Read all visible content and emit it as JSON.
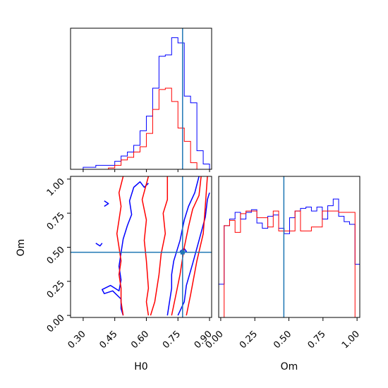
{
  "chart_data": {
    "type": "corner",
    "parameters": [
      {
        "name": "H0",
        "label": "H0",
        "range": [
          0.24,
          0.91
        ],
        "ticks": [
          "0.30",
          "0.45",
          "0.60",
          "0.75",
          "0.90"
        ],
        "tick_values": [
          0.3,
          0.45,
          0.6,
          0.75,
          0.9
        ],
        "truth": 0.772
      },
      {
        "name": "Om",
        "label": "Om",
        "range": [
          -0.015,
          1.02
        ],
        "ticks": [
          "0.00",
          "0.25",
          "0.50",
          "0.75",
          "1.00"
        ],
        "tick_values": [
          0.0,
          0.25,
          0.5,
          0.75,
          1.0
        ],
        "truth": 0.463
      }
    ],
    "truth_color": "#1f77b4",
    "series": [
      {
        "color": "#0000ff",
        "hist_H0": {
          "edges": [
            0.24,
            0.27,
            0.3,
            0.33,
            0.36,
            0.39,
            0.42,
            0.45,
            0.48,
            0.51,
            0.54,
            0.57,
            0.6,
            0.63,
            0.66,
            0.69,
            0.72,
            0.75,
            0.78,
            0.81,
            0.84,
            0.87,
            0.9,
            0.91
          ],
          "heights": [
            0.0,
            0.0,
            0.015,
            0.015,
            0.03,
            0.03,
            0.03,
            0.06,
            0.1,
            0.13,
            0.18,
            0.29,
            0.4,
            0.61,
            0.85,
            0.86,
            0.99,
            0.95,
            0.55,
            0.5,
            0.14,
            0.04,
            0.0
          ]
        },
        "hist_Om": {
          "edges": [
            -0.015,
            0.025,
            0.065,
            0.105,
            0.145,
            0.185,
            0.225,
            0.265,
            0.305,
            0.345,
            0.385,
            0.425,
            0.465,
            0.505,
            0.545,
            0.585,
            0.625,
            0.665,
            0.705,
            0.745,
            0.785,
            0.825,
            0.865,
            0.905,
            0.945,
            0.985,
            1.02
          ],
          "heights": [
            0.25,
            0.69,
            0.74,
            0.79,
            0.74,
            0.79,
            0.81,
            0.71,
            0.67,
            0.76,
            0.77,
            0.67,
            0.63,
            0.75,
            0.8,
            0.82,
            0.83,
            0.8,
            0.83,
            0.74,
            0.84,
            0.89,
            0.76,
            0.72,
            0.7,
            0.4
          ]
        },
        "contours": [
          [
            [
              0.49,
              0.0
            ],
            [
              0.48,
              0.05
            ],
            [
              0.48,
              0.12
            ],
            [
              0.44,
              0.18
            ],
            [
              0.4,
              0.16
            ],
            [
              0.39,
              0.19
            ],
            [
              0.43,
              0.22
            ],
            [
              0.47,
              0.18
            ],
            [
              0.48,
              0.26
            ],
            [
              0.47,
              0.36
            ],
            [
              0.48,
              0.46
            ],
            [
              0.49,
              0.56
            ],
            [
              0.51,
              0.66
            ],
            [
              0.53,
              0.74
            ],
            [
              0.52,
              0.84
            ],
            [
              0.54,
              0.94
            ],
            [
              0.57,
              0.98
            ],
            [
              0.59,
              0.94
            ],
            [
              0.61,
              0.97
            ]
          ],
          [
            [
              0.36,
              0.53
            ],
            [
              0.38,
              0.51
            ],
            [
              0.39,
              0.53
            ]
          ],
          [
            [
              0.4,
              0.84
            ],
            [
              0.42,
              0.82
            ],
            [
              0.4,
              0.8
            ]
          ],
          [
            [
              0.7,
              0.0
            ],
            [
              0.71,
              0.1
            ],
            [
              0.72,
              0.2
            ],
            [
              0.72,
              0.3
            ],
            [
              0.73,
              0.4
            ],
            [
              0.76,
              0.55
            ],
            [
              0.78,
              0.7
            ],
            [
              0.8,
              0.8
            ],
            [
              0.83,
              0.9
            ],
            [
              0.85,
              1.02
            ]
          ],
          [
            [
              0.75,
              0.0
            ],
            [
              0.78,
              0.1
            ],
            [
              0.79,
              0.22
            ],
            [
              0.82,
              0.38
            ],
            [
              0.85,
              0.55
            ],
            [
              0.88,
              0.72
            ],
            [
              0.89,
              0.85
            ],
            [
              0.9,
              0.9
            ]
          ],
          [
            [
              0.76,
              0.47
            ],
            [
              0.78,
              0.49
            ],
            [
              0.79,
              0.47
            ],
            [
              0.77,
              0.45
            ],
            [
              0.76,
              0.47
            ]
          ]
        ]
      },
      {
        "color": "#ff0000",
        "hist_H0": {
          "edges": [
            0.24,
            0.27,
            0.3,
            0.33,
            0.36,
            0.39,
            0.42,
            0.45,
            0.48,
            0.51,
            0.54,
            0.57,
            0.6,
            0.63,
            0.66,
            0.69,
            0.72,
            0.75,
            0.78,
            0.81,
            0.84,
            0.87,
            0.9,
            0.91
          ],
          "heights": [
            0.0,
            0.0,
            0.0,
            0.0,
            0.0,
            0.0,
            0.01,
            0.03,
            0.07,
            0.09,
            0.13,
            0.17,
            0.27,
            0.45,
            0.6,
            0.61,
            0.51,
            0.31,
            0.21,
            0.05,
            0.0,
            0.0,
            0.0
          ]
        },
        "hist_Om": {
          "edges": [
            -0.015,
            0.025,
            0.065,
            0.105,
            0.145,
            0.185,
            0.225,
            0.265,
            0.305,
            0.345,
            0.385,
            0.425,
            0.465,
            0.505,
            0.545,
            0.585,
            0.625,
            0.665,
            0.705,
            0.745,
            0.785,
            0.825,
            0.865,
            0.905,
            0.945,
            0.985,
            1.02
          ],
          "heights": [
            0.0,
            0.69,
            0.73,
            0.64,
            0.78,
            0.8,
            0.8,
            0.75,
            0.75,
            0.68,
            0.8,
            0.65,
            0.65,
            0.65,
            0.8,
            0.65,
            0.65,
            0.68,
            0.68,
            0.8,
            0.8,
            0.8,
            0.79,
            0.79,
            0.79,
            0.0
          ]
        },
        "contours": [
          [
            [
              0.62,
              0.0
            ],
            [
              0.64,
              0.1
            ],
            [
              0.65,
              0.2
            ],
            [
              0.66,
              0.3
            ],
            [
              0.67,
              0.45
            ],
            [
              0.69,
              0.6
            ],
            [
              0.68,
              0.75
            ],
            [
              0.7,
              0.85
            ],
            [
              0.7,
              1.02
            ]
          ],
          [
            [
              0.49,
              0.0
            ],
            [
              0.48,
              0.1
            ],
            [
              0.48,
              0.2
            ],
            [
              0.47,
              0.3
            ],
            [
              0.48,
              0.4
            ],
            [
              0.47,
              0.5
            ],
            [
              0.46,
              0.6
            ],
            [
              0.47,
              0.7
            ],
            [
              0.48,
              0.8
            ],
            [
              0.47,
              0.9
            ],
            [
              0.49,
              1.02
            ]
          ],
          [
            [
              0.61,
              0.0
            ],
            [
              0.6,
              0.1
            ],
            [
              0.61,
              0.2
            ],
            [
              0.6,
              0.4
            ],
            [
              0.59,
              0.55
            ],
            [
              0.6,
              0.7
            ],
            [
              0.58,
              0.85
            ],
            [
              0.61,
              1.02
            ]
          ],
          [
            [
              0.72,
              0.0
            ],
            [
              0.74,
              0.15
            ],
            [
              0.76,
              0.3
            ],
            [
              0.78,
              0.5
            ],
            [
              0.8,
              0.65
            ],
            [
              0.82,
              0.78
            ],
            [
              0.85,
              0.88
            ],
            [
              0.86,
              1.02
            ]
          ],
          [
            [
              0.79,
              0.0
            ],
            [
              0.81,
              0.15
            ],
            [
              0.84,
              0.4
            ],
            [
              0.87,
              0.6
            ],
            [
              0.88,
              0.8
            ],
            [
              0.89,
              1.02
            ]
          ]
        ]
      }
    ]
  }
}
